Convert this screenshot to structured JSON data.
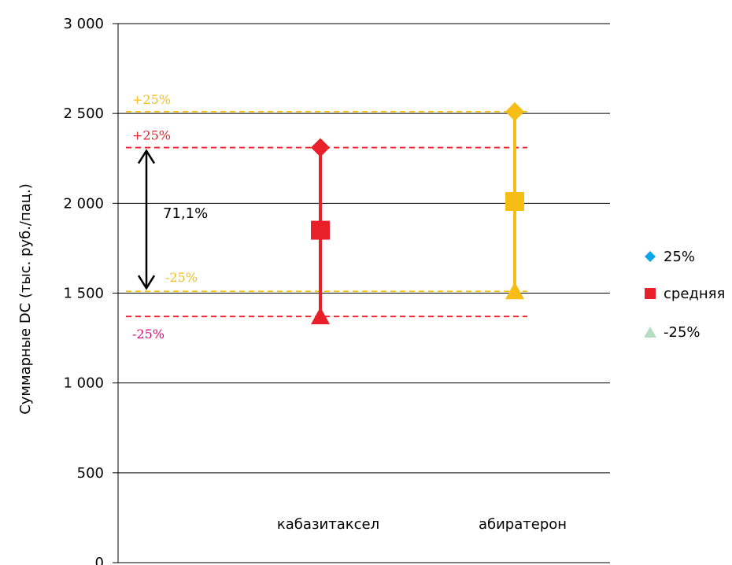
{
  "chart_data": {
    "type": "scatter",
    "ylabel": "Суммарные DC (тыс. руб./пац.)",
    "ylim": [
      0,
      3000
    ],
    "ytick_values": [
      0,
      500,
      1000,
      1500,
      2000,
      2500,
      3000
    ],
    "ytick_labels": [
      "0",
      "500",
      "1 000",
      "1 500",
      "2 000",
      "2 500",
      "3 000"
    ],
    "grid": true,
    "legend_position": "right",
    "categories": [
      "кабазитаксел",
      "абиратерон"
    ],
    "category_colors": [
      "#e8202a",
      "#f6bd16"
    ],
    "series": [
      {
        "name": "25%",
        "marker": "diamond",
        "legend_color": "#0ea5e9",
        "values": [
          2310,
          2510
        ]
      },
      {
        "name": "средняя",
        "marker": "square",
        "legend_color": "#e8202a",
        "values": [
          1850,
          2010
        ]
      },
      {
        "name": "-25%",
        "marker": "triangle",
        "legend_color": "#b5ddc2",
        "values": [
          1370,
          1510
        ]
      }
    ],
    "reference_lines": [
      {
        "y": 2510,
        "color": "#f6bd16",
        "label": "+25%",
        "label_color": "#f6bd16"
      },
      {
        "y": 2310,
        "color": "#e8202a",
        "label": "+25%",
        "label_color": "#e8202a"
      },
      {
        "y": 1510,
        "color": "#f6bd16",
        "label": "-25%",
        "label_color": "#f6bd16"
      },
      {
        "y": 1370,
        "color": "#e8202a",
        "label": "-25%",
        "label_color": "#e6007e"
      }
    ],
    "range_annotation": {
      "y_from": 1510,
      "y_to": 2310,
      "label": "71,1%"
    }
  }
}
